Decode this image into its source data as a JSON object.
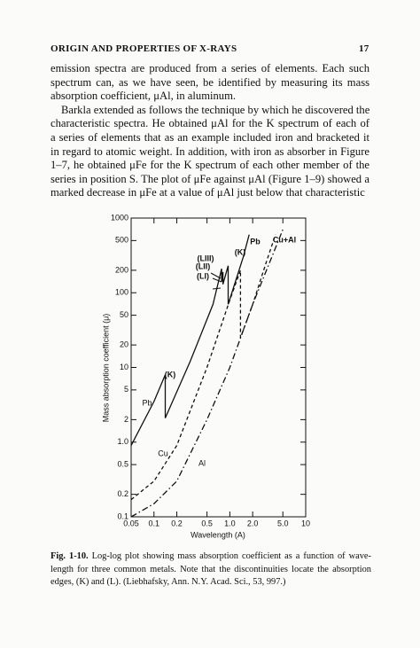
{
  "header": {
    "title": "ORIGIN AND PROPERTIES OF X-RAYS",
    "page": "17"
  },
  "paragraphs": [
    {
      "lines": [
        "emission spectra are produced from a series of elements. Each such",
        "spectrum can, as we have seen, be identified by measuring its mass",
        "absorption coefficient, μAl, in aluminum."
      ]
    },
    {
      "lines": [
        "Barkla extended as follows the technique by which he discovered the",
        "characteristic spectra. He obtained μAl for the K spectrum of each of",
        "a series of elements that as an example included iron and bracketed it",
        "in regard to atomic weight. In addition, with iron as absorber in Figure",
        "1–7, he obtained μFe for the K spectrum of each other member of the",
        "series in position S. The plot of μFe against μAl (Figure 1–9) showed a",
        "marked decrease in μFe at a value of μAl just below that characteristic"
      ]
    }
  ],
  "chart_data": {
    "type": "line",
    "xlabel": "Wavelength (A)",
    "ylabel": "Mass absorption coefficient (μ)",
    "xscale": "log",
    "yscale": "log",
    "grid": false,
    "xlim": [
      0.05,
      10
    ],
    "ylim": [
      0.1,
      1000
    ],
    "xticks": [
      0.05,
      0.1,
      0.2,
      0.5,
      {
        "value": 1,
        "label": "1.0"
      },
      {
        "value": 2,
        "label": "2.0"
      },
      {
        "value": 5,
        "label": "5.0"
      },
      10
    ],
    "yticks": [
      0.1,
      0.2,
      0.5,
      {
        "value": 1,
        "label": "1.0"
      },
      2,
      5,
      10,
      20,
      50,
      100,
      200,
      500,
      1000
    ],
    "series": [
      {
        "name": "Pb",
        "color": "#111111",
        "dash": "solid",
        "x": [
          0.05,
          0.1,
          0.141,
          0.141,
          0.3,
          0.6,
          0.78,
          0.78,
          0.81,
          0.81,
          0.95,
          0.95,
          1.5,
          1.8
        ],
        "values": [
          0.9,
          3.5,
          8,
          2.1,
          12,
          70,
          210,
          140,
          190,
          130,
          230,
          70,
          300,
          600
        ]
      },
      {
        "name": "Cu",
        "color": "#111111",
        "dash": "dashed",
        "x": [
          0.05,
          0.1,
          0.2,
          0.5,
          1.0,
          1.38,
          1.38,
          2.0,
          3.0,
          4.0
        ],
        "values": [
          0.17,
          0.3,
          0.9,
          10,
          80,
          200,
          25,
          70,
          250,
          600
        ]
      },
      {
        "name": "Al",
        "color": "#111111",
        "dash": "dashdot",
        "x": [
          0.05,
          0.1,
          0.2,
          0.5,
          1.0,
          2.0,
          5.0
        ],
        "values": [
          0.1,
          0.15,
          0.3,
          2,
          10,
          70,
          700
        ]
      }
    ],
    "annotations": [
      "(K)",
      "(LIII)",
      "(LII)",
      "(LI)",
      "(K)",
      "Pb",
      "Cu+Al"
    ]
  },
  "caption": {
    "label": "Fig. 1-10.",
    "lines": [
      "Log-log plot showing mass absorption coefficient as a function of wave-",
      "length for three common metals. Note that the discontinuities locate the absorption",
      "edges, (K) and (L). (Liebhafsky, Ann. N.Y. Acad. Sci., 53, 997.)"
    ]
  }
}
